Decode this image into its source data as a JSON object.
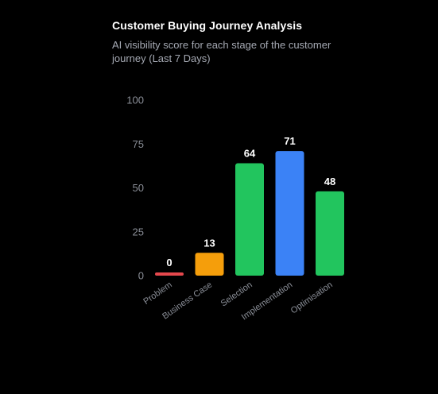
{
  "header": {
    "title": "Customer Buying Journey Analysis",
    "subtitle": "AI visibility score for each stage of the customer journey (Last 7 Days)"
  },
  "chart_data": {
    "type": "bar",
    "title": "Customer Buying Journey Analysis",
    "subtitle": "AI visibility score for each stage of the customer journey (Last 7 Days)",
    "xlabel": "",
    "ylabel": "",
    "categories": [
      "Problem",
      "Business Case",
      "Selection",
      "Implementation",
      "Optimisation"
    ],
    "values": [
      0,
      13,
      64,
      71,
      48
    ],
    "value_labels": [
      "0",
      "13",
      "64",
      "71",
      "48"
    ],
    "bar_colors": [
      "#e5484d",
      "#f59e0b",
      "#22c55e",
      "#3b82f6",
      "#22c55e"
    ],
    "ylim": [
      0,
      100
    ],
    "yticks": [
      0,
      25,
      50,
      75,
      100
    ],
    "grid": false,
    "legend": "none",
    "background": "#000000"
  }
}
